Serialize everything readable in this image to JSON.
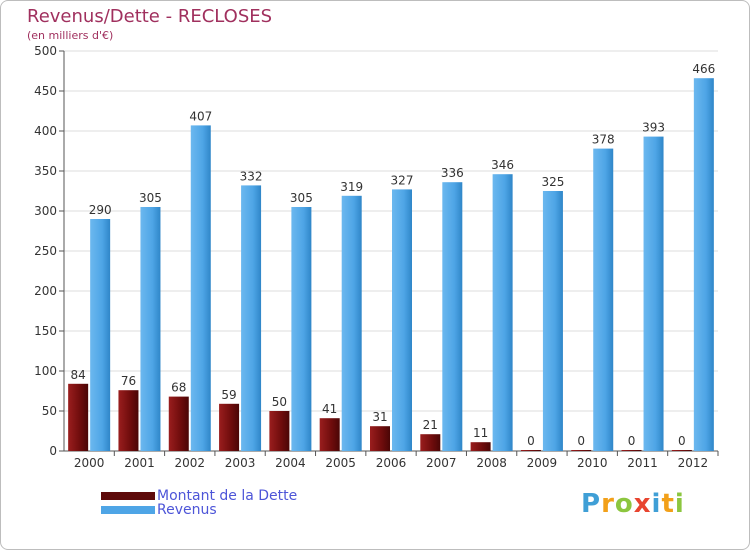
{
  "chart_data": {
    "type": "bar",
    "title": "Revenus/Dette - RECLOSES",
    "subtitle": "(en milliers d'€)",
    "xlabel": "",
    "ylabel": "",
    "ylim": [
      0,
      500
    ],
    "yticks": [
      0,
      50,
      100,
      150,
      200,
      250,
      300,
      350,
      400,
      450,
      500
    ],
    "grid": true,
    "legend_position": "bottom-left",
    "categories": [
      "2000",
      "2001",
      "2002",
      "2003",
      "2004",
      "2005",
      "2006",
      "2007",
      "2008",
      "2009",
      "2010",
      "2011",
      "2012"
    ],
    "series": [
      {
        "name": "Montant de la Dette",
        "color": "#7a1010",
        "values": [
          84,
          76,
          68,
          59,
          50,
          41,
          31,
          21,
          11,
          0,
          0,
          0,
          0
        ]
      },
      {
        "name": "Revenus",
        "color": "#4ea5e6",
        "values": [
          290,
          305,
          407,
          332,
          305,
          319,
          327,
          336,
          346,
          325,
          378,
          393,
          466
        ]
      }
    ]
  },
  "logo": {
    "text": "Proxiti",
    "colors": [
      "#3f9fd6",
      "#f2a019",
      "#8cc63f",
      "#e8442f"
    ]
  }
}
